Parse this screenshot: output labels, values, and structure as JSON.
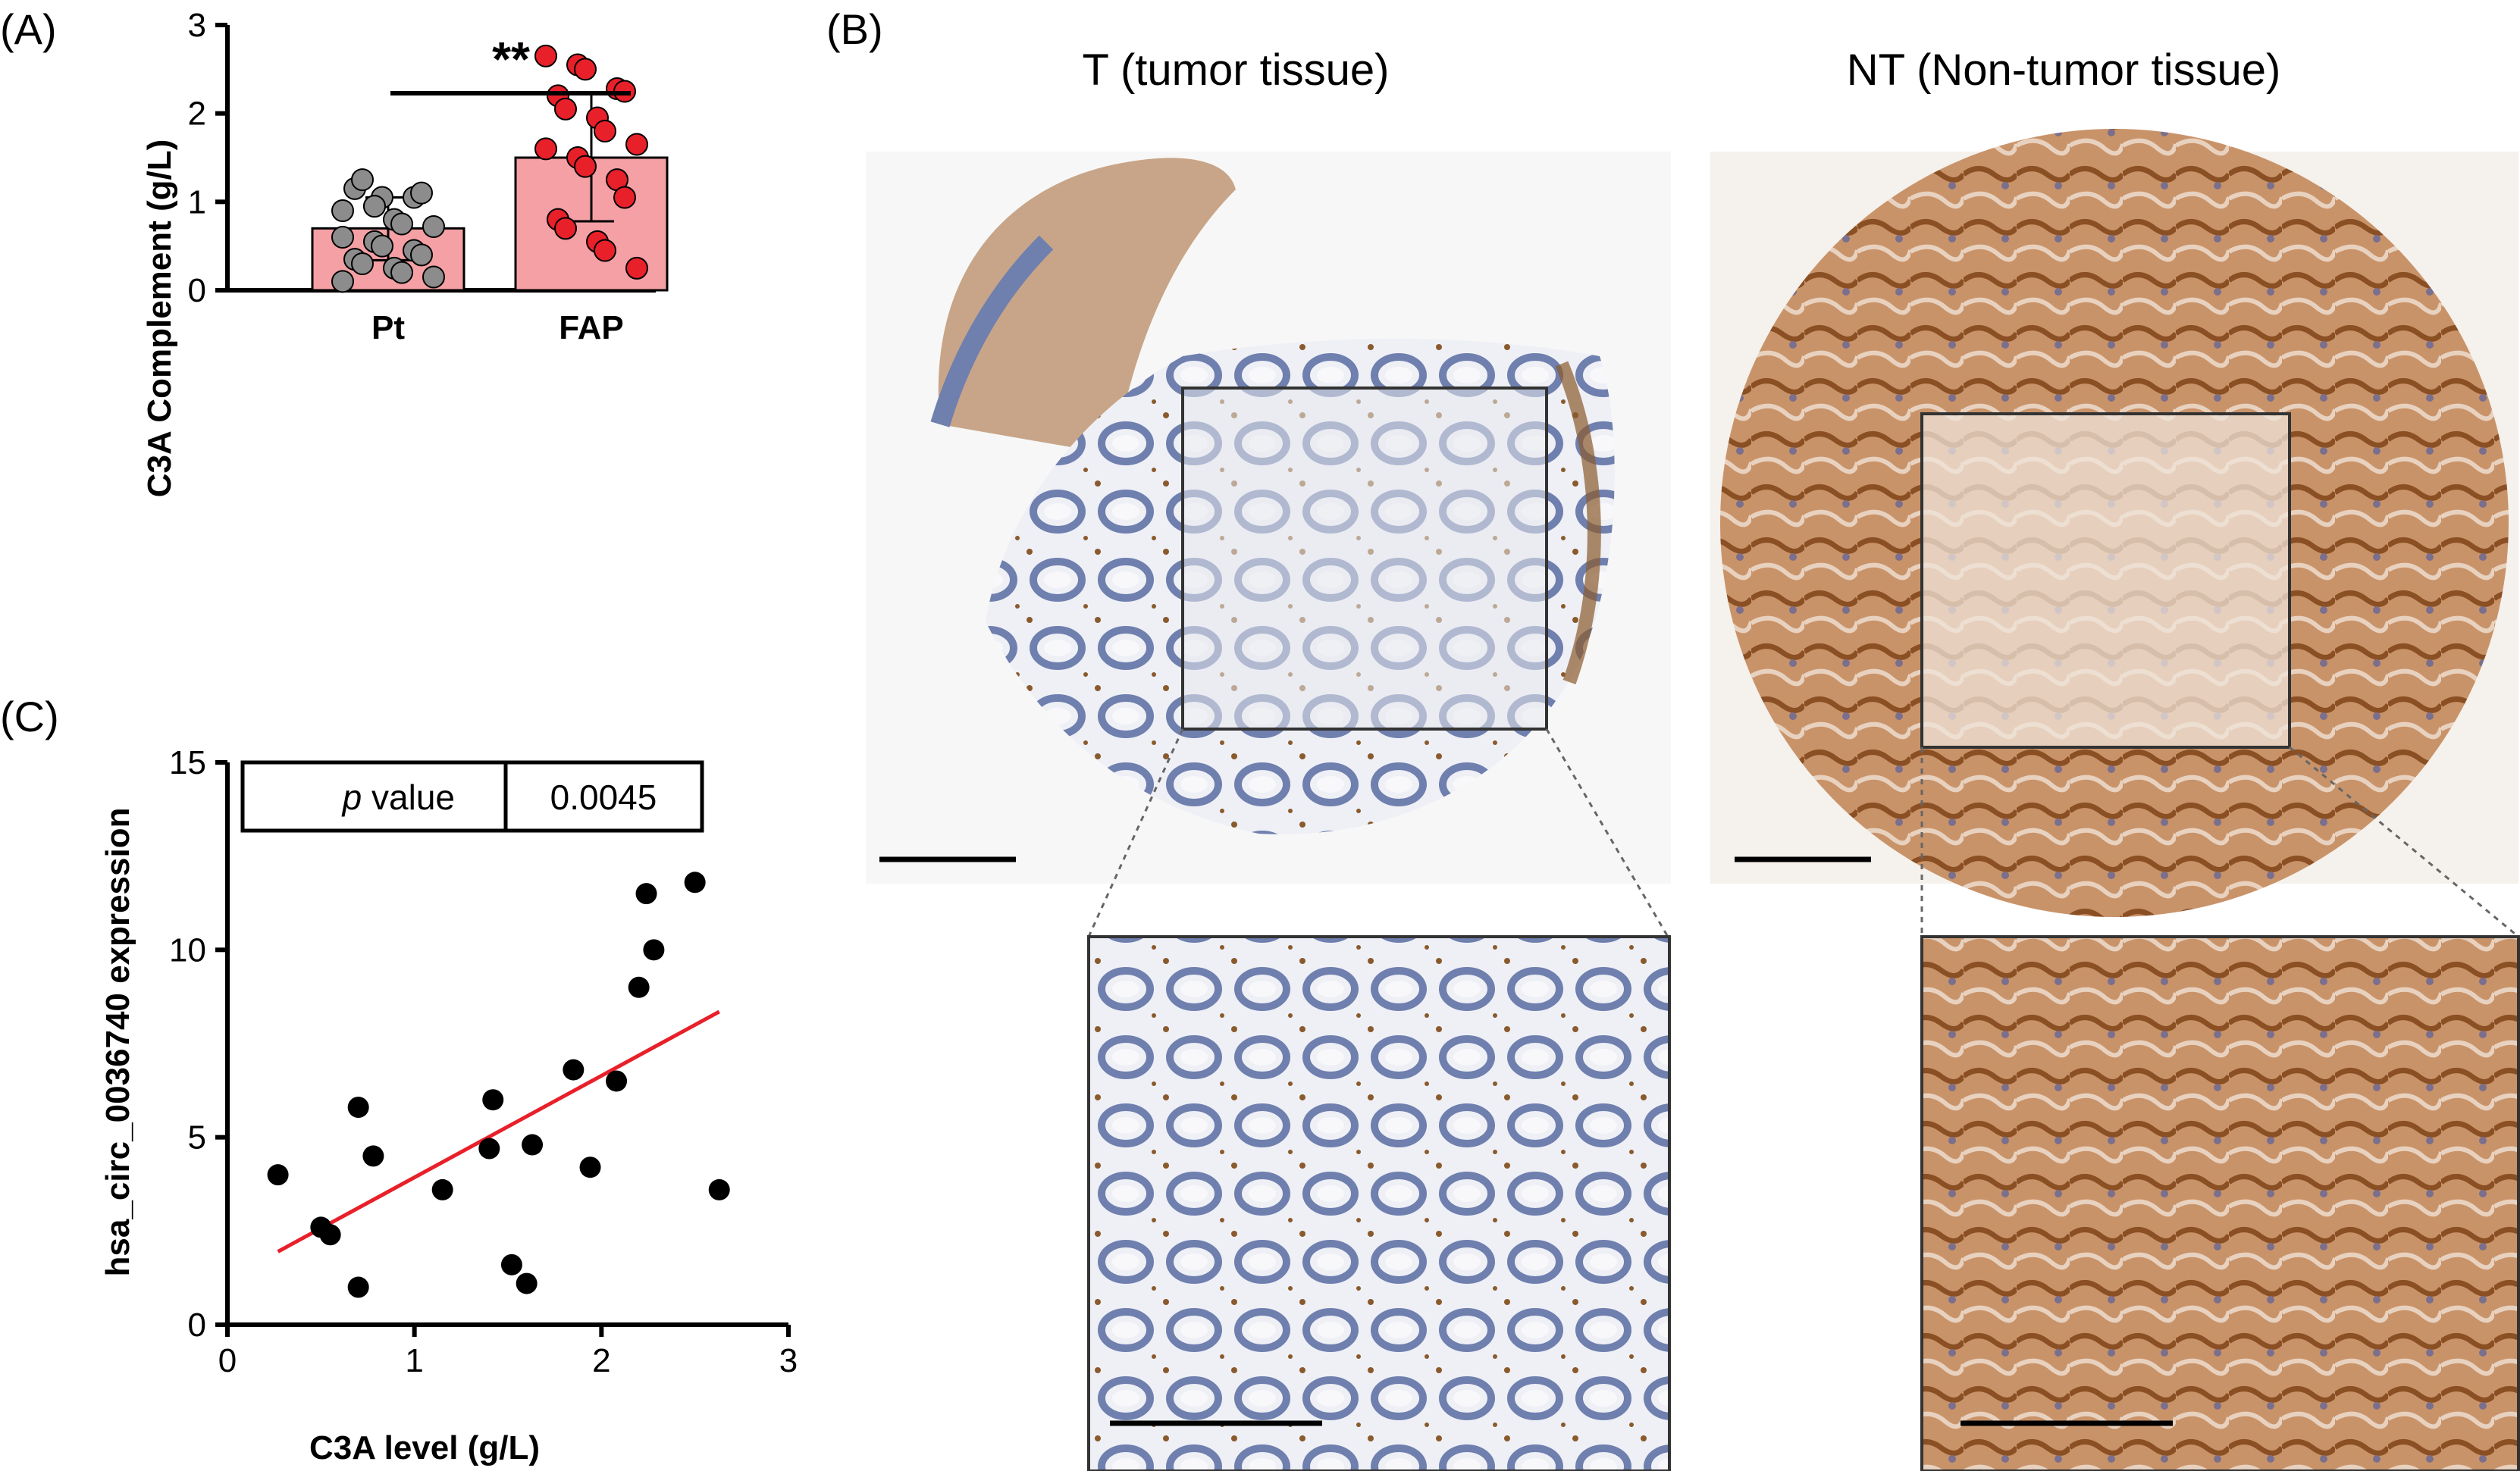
{
  "panels": {
    "A": {
      "label": "(A)",
      "chart_data": {
        "type": "bar",
        "categories": [
          "Pt",
          "FAP"
        ],
        "values": [
          0.7,
          1.5
        ],
        "error_low": [
          0.34,
          0.78
        ],
        "error_high": [
          1.05,
          2.22
        ],
        "points": [
          [
            0.9,
            0.95,
            1.05,
            1.05,
            1.1,
            1.15,
            1.25,
            0.8,
            0.75,
            0.72,
            0.6,
            0.55,
            0.5,
            0.45,
            0.4,
            0.35,
            0.3,
            0.25,
            0.2,
            0.15,
            0.1,
            0.95
          ],
          [
            2.65,
            2.55,
            2.5,
            2.28,
            2.25,
            2.2,
            2.05,
            1.95,
            1.8,
            1.65,
            1.6,
            1.5,
            1.4,
            1.25,
            1.05,
            0.8,
            0.7,
            0.55,
            0.45,
            0.25
          ]
        ],
        "ylabel": "C3A Complement (g/L)",
        "ylim": [
          0,
          3
        ],
        "yticks": [
          "0",
          "1",
          "2",
          "3"
        ],
        "significance": "**",
        "bar_color": "#f4a0a5",
        "point_colors": [
          "#8c8c8c",
          "#e8202a"
        ]
      }
    },
    "B": {
      "label": "(B)",
      "left_title": "T (tumor tissue)",
      "right_title": "NT (Non-tumor tissue)"
    },
    "C": {
      "label": "(C)",
      "chart_data": {
        "type": "scatter",
        "points": [
          [
            0.27,
            4.0
          ],
          [
            0.5,
            2.6
          ],
          [
            0.55,
            2.4
          ],
          [
            0.7,
            1.0
          ],
          [
            0.7,
            5.8
          ],
          [
            0.78,
            4.5
          ],
          [
            1.15,
            3.6
          ],
          [
            1.4,
            4.7
          ],
          [
            1.42,
            6.0
          ],
          [
            1.52,
            1.6
          ],
          [
            1.6,
            1.1
          ],
          [
            1.63,
            4.8
          ],
          [
            1.85,
            6.8
          ],
          [
            1.94,
            4.2
          ],
          [
            2.08,
            6.5
          ],
          [
            2.2,
            9.0
          ],
          [
            2.24,
            11.5
          ],
          [
            2.28,
            10.0
          ],
          [
            2.5,
            11.8
          ],
          [
            2.63,
            3.6
          ]
        ],
        "fit_line": [
          [
            0.27,
            1.95
          ],
          [
            2.63,
            8.35
          ]
        ],
        "xlabel": "C3A level (g/L)",
        "ylabel": "hsa_circ_0036740 expression",
        "xlim": [
          0,
          3
        ],
        "ylim": [
          0,
          15
        ],
        "xticks": [
          "0",
          "1",
          "2",
          "3"
        ],
        "yticks": [
          "0",
          "5",
          "10",
          "15"
        ],
        "p_label_italic": "p",
        "p_label_rest": " value",
        "p_value": "0.0045",
        "fit_color": "#e8202a"
      }
    }
  }
}
